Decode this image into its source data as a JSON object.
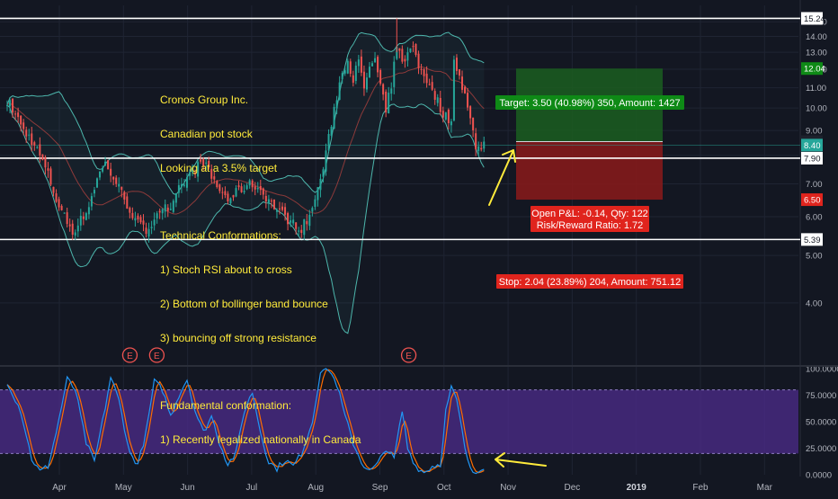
{
  "annotation_lines": [
    "Cronos Group Inc.",
    "Canadian pot stock",
    "Looking at a 3.5% target",
    "",
    "Technical Conformations:",
    "1) Stoch RSI about to cross",
    "2) Bottom of bollinger band bounce",
    "3) bouncing off strong resistance",
    "",
    "Fundamental conformation:",
    "1) Recently legalized nationally in Canada"
  ],
  "position": {
    "target_label": "Target: 3.50 (40.98%) 350, Amount: 1427",
    "stop_label": "Stop: 2.04 (23.89%) 204, Amount: 751.12",
    "pnl_label": "Open P&L: -0.14, Qty: 122",
    "rr_label": "Risk/Reward Ratio: 1.72",
    "entry": 8.54,
    "target": 12.04,
    "stop": 6.5
  },
  "earnings_marker": "E",
  "colors": {
    "background": "#131722",
    "up": "#26a69a",
    "down": "#ef5350",
    "bollinger": "#4db6ac",
    "stoch_k": "#2196f3",
    "stoch_d": "#ff6d00",
    "profit": "#1b5e20",
    "loss": "#8b1a1a",
    "annotation": "#ffeb3b",
    "arrow": "#ffeb3b"
  },
  "chart_data": [
    {
      "type": "candlestick",
      "x_months": [
        "Apr",
        "May",
        "Jun",
        "Jul",
        "Aug",
        "Sep",
        "Oct",
        "Nov",
        "Dec",
        "2019",
        "Feb",
        "Mar"
      ],
      "price_ticks": [
        "4.00",
        "5.00",
        "6.00",
        "7.00",
        "8.00",
        "9.00",
        "10.00",
        "11.00",
        "12.00",
        "13.00",
        "14.00",
        "15.00"
      ],
      "ylim": [
        3.0,
        16.2
      ],
      "scale": "log",
      "horizontal_lines": [
        15.24,
        7.9,
        5.39
      ],
      "price_labels": [
        {
          "text": "15.24",
          "value": 15.24,
          "style": "white"
        },
        {
          "text": "12.04",
          "value": 12.04,
          "style": "green"
        },
        {
          "text": "8.54",
          "value": 8.54,
          "style": "dark"
        },
        {
          "text": "8.40",
          "value": 8.4,
          "style": "teal"
        },
        {
          "text": "7.90",
          "value": 7.9,
          "style": "white"
        },
        {
          "text": "6.50",
          "value": 6.5,
          "style": "red"
        },
        {
          "text": "5.39",
          "value": 5.39,
          "style": "white"
        }
      ],
      "price_anchors": [
        [
          0,
          10.4
        ],
        [
          3,
          9.7
        ],
        [
          6,
          9.0
        ],
        [
          9,
          8.6
        ],
        [
          12,
          8.0
        ],
        [
          15,
          7.3
        ],
        [
          18,
          6.5
        ],
        [
          21,
          6.0
        ],
        [
          24,
          5.6
        ],
        [
          27,
          5.9
        ],
        [
          30,
          6.3
        ],
        [
          33,
          7.2
        ],
        [
          36,
          7.7
        ],
        [
          39,
          7.2
        ],
        [
          42,
          6.7
        ],
        [
          45,
          6.2
        ],
        [
          48,
          5.8
        ],
        [
          51,
          5.6
        ],
        [
          54,
          6.0
        ],
        [
          57,
          6.3
        ],
        [
          60,
          6.1
        ],
        [
          63,
          6.8
        ],
        [
          66,
          7.2
        ],
        [
          69,
          7.5
        ],
        [
          72,
          7.8
        ],
        [
          75,
          7.2
        ],
        [
          78,
          6.8
        ],
        [
          81,
          6.5
        ],
        [
          84,
          6.7
        ],
        [
          87,
          6.9
        ],
        [
          90,
          7.0
        ],
        [
          93,
          6.8
        ],
        [
          96,
          6.5
        ],
        [
          99,
          6.2
        ],
        [
          102,
          6.0
        ],
        [
          105,
          5.8
        ],
        [
          108,
          5.7
        ],
        [
          111,
          6.0
        ],
        [
          114,
          6.8
        ],
        [
          117,
          8.0
        ],
        [
          120,
          10.0
        ],
        [
          123,
          11.8
        ],
        [
          125,
          12.6
        ],
        [
          127,
          11.5
        ],
        [
          129,
          12.4
        ],
        [
          131,
          10.8
        ],
        [
          133,
          12.2
        ],
        [
          135,
          12.5
        ],
        [
          137,
          11.0
        ],
        [
          139,
          9.8
        ],
        [
          141,
          11.2
        ],
        [
          143,
          13.2
        ],
        [
          145,
          12.6
        ],
        [
          147,
          12.8
        ],
        [
          149,
          13.4
        ],
        [
          151,
          12.2
        ],
        [
          153,
          11.8
        ],
        [
          155,
          11.0
        ],
        [
          157,
          10.6
        ],
        [
          159,
          10.0
        ],
        [
          161,
          9.6
        ],
        [
          163,
          9.3
        ],
        [
          164,
          12.8
        ],
        [
          166,
          11.6
        ],
        [
          168,
          10.6
        ],
        [
          170,
          9.4
        ],
        [
          172,
          8.4
        ],
        [
          174,
          8.2
        ],
        [
          175,
          8.54
        ]
      ],
      "earnings_at_month_index": [
        1.1,
        1.52,
        5.45
      ]
    },
    {
      "type": "line",
      "name_k": "",
      "ylim": [
        0,
        100
      ],
      "ticks": [
        "0.0000",
        "25.0000",
        "50.0000",
        "75.0000",
        "100.0000"
      ],
      "band": [
        20,
        80
      ],
      "k_anchors": [
        [
          0,
          88
        ],
        [
          5,
          60
        ],
        [
          9,
          15
        ],
        [
          12,
          3
        ],
        [
          15,
          8
        ],
        [
          18,
          40
        ],
        [
          22,
          90
        ],
        [
          25,
          80
        ],
        [
          29,
          30
        ],
        [
          32,
          12
        ],
        [
          35,
          50
        ],
        [
          38,
          92
        ],
        [
          41,
          70
        ],
        [
          45,
          20
        ],
        [
          48,
          10
        ],
        [
          51,
          40
        ],
        [
          54,
          88
        ],
        [
          57,
          80
        ],
        [
          60,
          55
        ],
        [
          63,
          75
        ],
        [
          66,
          90
        ],
        [
          69,
          60
        ],
        [
          72,
          40
        ],
        [
          75,
          55
        ],
        [
          78,
          30
        ],
        [
          81,
          10
        ],
        [
          84,
          20
        ],
        [
          87,
          60
        ],
        [
          90,
          78
        ],
        [
          93,
          40
        ],
        [
          96,
          12
        ],
        [
          99,
          6
        ],
        [
          102,
          14
        ],
        [
          105,
          8
        ],
        [
          108,
          20
        ],
        [
          112,
          50
        ],
        [
          115,
          98
        ],
        [
          118,
          100
        ],
        [
          121,
          85
        ],
        [
          124,
          55
        ],
        [
          127,
          30
        ],
        [
          130,
          12
        ],
        [
          133,
          3
        ],
        [
          136,
          10
        ],
        [
          139,
          25
        ],
        [
          142,
          15
        ],
        [
          145,
          60
        ],
        [
          147,
          25
        ],
        [
          150,
          8
        ],
        [
          153,
          2
        ],
        [
          156,
          8
        ],
        [
          159,
          10
        ],
        [
          161,
          60
        ],
        [
          163,
          82
        ],
        [
          165,
          70
        ],
        [
          167,
          40
        ],
        [
          169,
          12
        ],
        [
          171,
          3
        ],
        [
          173,
          5
        ],
        [
          175,
          8
        ]
      ]
    }
  ]
}
